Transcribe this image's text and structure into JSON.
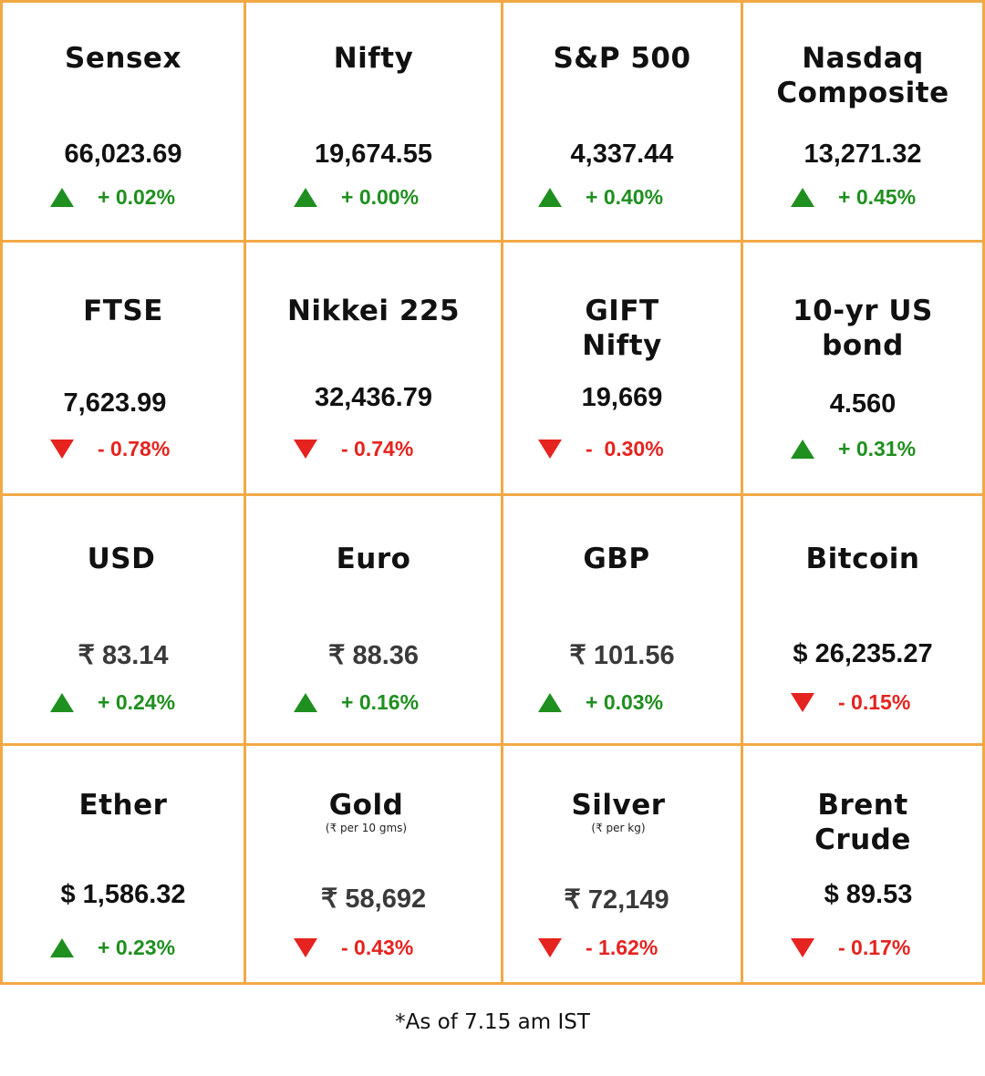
{
  "colors": {
    "border": "#f2a945",
    "up": "#1f8f1f",
    "down": "#e5231f"
  },
  "cells": [
    {
      "name": "Sensex",
      "value": "66,023.69",
      "change": "+ 0.02%",
      "direction": "up",
      "icon": "triangle-up-icon"
    },
    {
      "name": "Nifty",
      "value": "19,674.55",
      "change": "+ 0.00%",
      "direction": "up",
      "icon": "triangle-up-icon"
    },
    {
      "name": "S&P 500",
      "value": "4,337.44",
      "change": "+ 0.40%",
      "direction": "up",
      "icon": "triangle-up-icon"
    },
    {
      "name": "Nasdaq\nComposite",
      "value": "13,271.32",
      "change": "+ 0.45%",
      "direction": "up",
      "icon": "triangle-up-icon"
    },
    {
      "name": "FTSE",
      "value": "7,623.99",
      "change": "- 0.78%",
      "direction": "down",
      "icon": "triangle-down-icon"
    },
    {
      "name": "Nikkei 225",
      "value": "32,436.79",
      "change": "- 0.74%",
      "direction": "down",
      "icon": "triangle-down-icon"
    },
    {
      "name": "GIFT\nNifty",
      "value": "19,669",
      "change": "-  0.30%",
      "direction": "down",
      "icon": "triangle-down-icon"
    },
    {
      "name": "10-yr US\nbond",
      "value": "4.560",
      "change": "+ 0.31%",
      "direction": "up",
      "icon": "triangle-up-icon"
    },
    {
      "name": "USD",
      "value": "₹ 83.14",
      "change": "+ 0.24%",
      "direction": "up",
      "icon": "triangle-up-icon"
    },
    {
      "name": "Euro",
      "value": "₹ 88.36",
      "change": "+ 0.16%",
      "direction": "up",
      "icon": "triangle-up-icon"
    },
    {
      "name": "GBP",
      "value": "₹ 101.56",
      "change": "+ 0.03%",
      "direction": "up",
      "icon": "triangle-up-icon"
    },
    {
      "name": "Bitcoin",
      "value": "$ 26,235.27",
      "change": "- 0.15%",
      "direction": "down",
      "icon": "triangle-down-icon"
    },
    {
      "name": "Ether",
      "value": "$ 1,586.32",
      "change": "+ 0.23%",
      "direction": "up",
      "icon": "triangle-up-icon"
    },
    {
      "name": "Gold",
      "subtitle": "(₹ per 10 gms)",
      "value": "₹ 58,692",
      "change": "- 0.43%",
      "direction": "down",
      "icon": "triangle-down-icon"
    },
    {
      "name": "Silver",
      "subtitle": "(₹ per kg)",
      "value": "₹ 72,149",
      "change": "- 1.62%",
      "direction": "down",
      "icon": "triangle-down-icon"
    },
    {
      "name": "Brent\nCrude",
      "value": "$ 89.53",
      "change": "- 0.17%",
      "direction": "down",
      "icon": "triangle-down-icon"
    }
  ],
  "footnote": "*As of 7.15 am IST"
}
